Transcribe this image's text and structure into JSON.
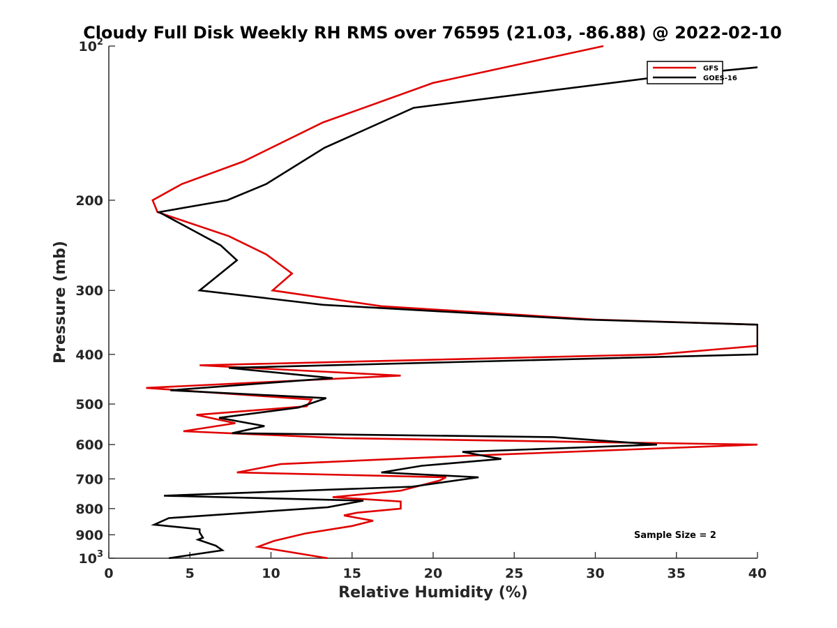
{
  "chart_data": {
    "type": "line",
    "title": "Cloudy Full Disk Weekly RH RMS over 76595 (21.03, -86.88) @ 2022-02-10",
    "xlabel": "Relative Humidity (%)",
    "ylabel": "Pressure (mb)",
    "xlim": [
      0,
      40
    ],
    "ylim": [
      100,
      1000
    ],
    "yscale": "log",
    "y_reversed": true,
    "x_ticks": [
      0,
      5,
      10,
      15,
      20,
      25,
      30,
      35,
      40
    ],
    "x_tick_labels": [
      "0",
      "5",
      "10",
      "15",
      "20",
      "25",
      "30",
      "35",
      "40"
    ],
    "y_ticks": [
      100,
      200,
      300,
      400,
      500,
      600,
      700,
      800,
      900,
      1000
    ],
    "y_tick_labels": [
      {
        "base": "10",
        "sup": "2"
      },
      {
        "base": "200",
        "sup": ""
      },
      {
        "base": "300",
        "sup": ""
      },
      {
        "base": "400",
        "sup": ""
      },
      {
        "base": "500",
        "sup": ""
      },
      {
        "base": "600",
        "sup": ""
      },
      {
        "base": "700",
        "sup": ""
      },
      {
        "base": "800",
        "sup": ""
      },
      {
        "base": "900",
        "sup": ""
      },
      {
        "base": "10",
        "sup": "3"
      }
    ],
    "legend_position": "top-right",
    "annotation": "Sample Size = 2",
    "series": [
      {
        "name": "GFS",
        "color": "#e00000",
        "points": [
          [
            30.5,
            100
          ],
          [
            20.0,
            118
          ],
          [
            13.2,
            141
          ],
          [
            8.3,
            168
          ],
          [
            4.5,
            186
          ],
          [
            2.7,
            200
          ],
          [
            3.0,
            211
          ],
          [
            7.4,
            235
          ],
          [
            9.7,
            255
          ],
          [
            11.3,
            278
          ],
          [
            10.1,
            300
          ],
          [
            16.8,
            322
          ],
          [
            30.0,
            342
          ],
          [
            40.0,
            350
          ],
          [
            40.0,
            385
          ],
          [
            33.8,
            400
          ],
          [
            5.6,
            420
          ],
          [
            18.0,
            440
          ],
          [
            2.3,
            465
          ],
          [
            12.5,
            490
          ],
          [
            12.2,
            505
          ],
          [
            5.4,
            525
          ],
          [
            7.8,
            545
          ],
          [
            4.6,
            565
          ],
          [
            14.5,
            583
          ],
          [
            40.0,
            600
          ],
          [
            21.5,
            632
          ],
          [
            10.6,
            655
          ],
          [
            7.9,
            680
          ],
          [
            20.8,
            695
          ],
          [
            20.4,
            705
          ],
          [
            18.0,
            738
          ],
          [
            13.8,
            760
          ],
          [
            18.0,
            775
          ],
          [
            18.0,
            800
          ],
          [
            15.3,
            815
          ],
          [
            14.5,
            825
          ],
          [
            16.3,
            845
          ],
          [
            15.0,
            865
          ],
          [
            12.1,
            895
          ],
          [
            10.2,
            925
          ],
          [
            9.2,
            950
          ],
          [
            13.5,
            1000
          ]
        ]
      },
      {
        "name": "GOES-16",
        "color": "#000000",
        "points": [
          [
            40.0,
            110
          ],
          [
            33.8,
            115
          ],
          [
            18.8,
            132
          ],
          [
            13.3,
            158
          ],
          [
            9.7,
            186
          ],
          [
            7.3,
            200
          ],
          [
            3.1,
            211
          ],
          [
            5.3,
            230
          ],
          [
            6.9,
            245
          ],
          [
            7.9,
            262
          ],
          [
            5.6,
            300
          ],
          [
            13.2,
            320
          ],
          [
            29.4,
            342
          ],
          [
            40.0,
            350
          ],
          [
            40.0,
            400
          ],
          [
            7.4,
            425
          ],
          [
            13.8,
            445
          ],
          [
            3.8,
            470
          ],
          [
            13.4,
            487
          ],
          [
            11.7,
            508
          ],
          [
            6.8,
            532
          ],
          [
            9.6,
            552
          ],
          [
            7.6,
            570
          ],
          [
            27.4,
            580
          ],
          [
            33.8,
            600
          ],
          [
            21.8,
            620
          ],
          [
            24.2,
            640
          ],
          [
            19.3,
            660
          ],
          [
            16.8,
            680
          ],
          [
            22.8,
            695
          ],
          [
            18.7,
            725
          ],
          [
            3.4,
            755
          ],
          [
            15.7,
            772
          ],
          [
            13.5,
            795
          ],
          [
            3.7,
            835
          ],
          [
            2.8,
            860
          ],
          [
            5.6,
            878
          ],
          [
            5.6,
            890
          ],
          [
            5.8,
            912
          ],
          [
            5.5,
            920
          ],
          [
            6.6,
            945
          ],
          [
            7.0,
            965
          ],
          [
            3.7,
            1000
          ]
        ]
      }
    ]
  }
}
